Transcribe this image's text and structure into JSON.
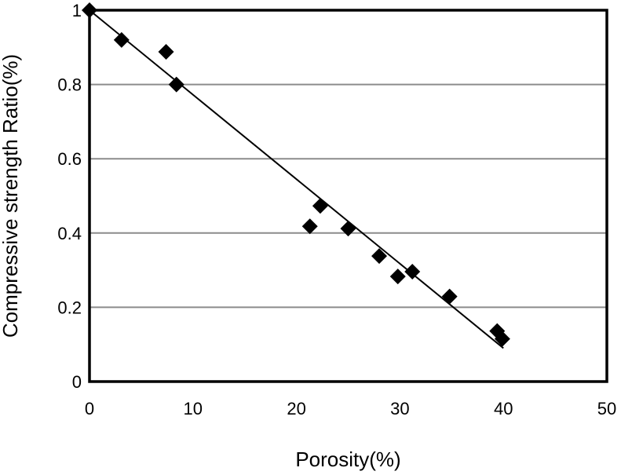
{
  "chart_data": {
    "type": "scatter",
    "title": "",
    "xlabel": "Porosity(%)",
    "ylabel": "Compressive strength Ratio(%)",
    "xlim": [
      0,
      50
    ],
    "ylim": [
      0,
      1
    ],
    "xticks": [
      "0",
      "10",
      "20",
      "30",
      "40",
      "50"
    ],
    "yticks": [
      "0",
      "0.2",
      "0.4",
      "0.6",
      "0.8",
      "1"
    ],
    "grid": "horizontal",
    "legend": "none",
    "marker": "diamond",
    "marker_color": "#000000",
    "series": [
      {
        "x": [
          0,
          3.1,
          7.4,
          8.4,
          21.3,
          22.3,
          25.0,
          28.0,
          29.8,
          31.2,
          34.8,
          39.4,
          39.9
        ],
        "y": [
          1.0,
          0.92,
          0.888,
          0.8,
          0.418,
          0.473,
          0.412,
          0.338,
          0.283,
          0.296,
          0.229,
          0.136,
          0.115
        ]
      }
    ],
    "trendline": {
      "type": "linear",
      "x": [
        0,
        40
      ],
      "y": [
        1.0,
        0.09
      ],
      "color": "#000000"
    }
  }
}
